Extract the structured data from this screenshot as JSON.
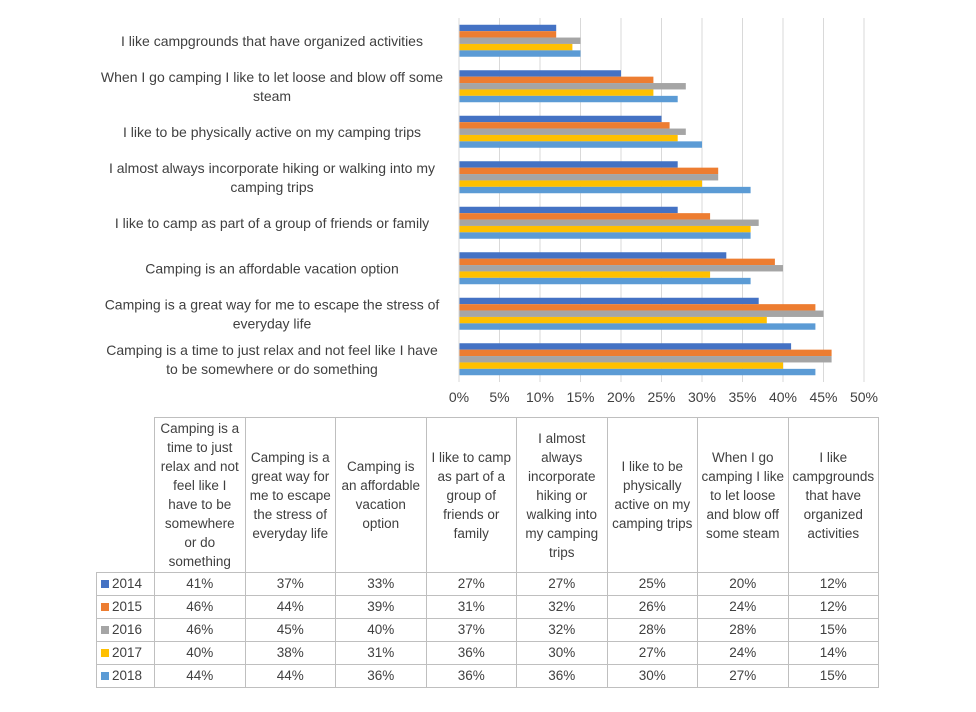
{
  "chart_data": {
    "type": "bar",
    "orientation": "horizontal",
    "categories": [
      "Camping is a time to just relax and not feel like I have to be somewhere or do something",
      "Camping is a great way for me to escape the stress of everyday life",
      "Camping is an affordable vacation option",
      "I like to camp as part of a group of friends or family",
      "I almost always incorporate hiking or walking into my camping trips",
      "I like to be physically active on my camping trips",
      "When I go camping I like to let loose and blow off some steam",
      "I like campgrounds that have organized activities"
    ],
    "category_label_lines": [
      [
        "Camping is a time to just relax and not feel like I have",
        "to be somewhere or do something"
      ],
      [
        "Camping is a great way for me to escape the stress of",
        "everyday life"
      ],
      [
        "Camping is an affordable vacation option"
      ],
      [
        "I like to camp as part of a group of friends or family"
      ],
      [
        "I almost always incorporate hiking or walking into my",
        "camping trips"
      ],
      [
        "I like to be physically active on my camping trips"
      ],
      [
        "When I go camping I like to let loose and blow off some",
        "steam"
      ],
      [
        "I like campgrounds that have organized activities"
      ]
    ],
    "table_header_lines": [
      [
        "Camping is a",
        "time to just",
        "relax and not",
        "feel like I",
        "have to be",
        "somewhere",
        "or do",
        "something"
      ],
      [
        "Camping is a",
        "great way for",
        "me to escape",
        "the stress of",
        "everyday life"
      ],
      [
        "Camping is",
        "an affordable",
        "vacation",
        "option"
      ],
      [
        "I like to camp",
        "as part of a",
        "group of",
        "friends or",
        "family"
      ],
      [
        "I almost",
        "always",
        "incorporate",
        "hiking or",
        "walking into",
        "my camping",
        "trips"
      ],
      [
        "I like to be",
        "physically",
        "active on my",
        "camping trips"
      ],
      [
        "When I go",
        "camping I like",
        "to let loose",
        "and blow off",
        "some steam"
      ],
      [
        "I like",
        "campgrounds",
        "that have",
        "organized",
        "activities"
      ]
    ],
    "series": [
      {
        "name": "2014",
        "color": "#4472c4",
        "values": [
          41,
          37,
          33,
          27,
          27,
          25,
          20,
          12
        ]
      },
      {
        "name": "2015",
        "color": "#ed7d31",
        "values": [
          46,
          44,
          39,
          31,
          32,
          26,
          24,
          12
        ]
      },
      {
        "name": "2016",
        "color": "#a5a5a5",
        "values": [
          46,
          45,
          40,
          37,
          32,
          28,
          28,
          15
        ]
      },
      {
        "name": "2017",
        "color": "#ffc000",
        "values": [
          40,
          38,
          31,
          36,
          30,
          27,
          24,
          14
        ]
      },
      {
        "name": "2018",
        "color": "#5b9bd5",
        "values": [
          44,
          44,
          36,
          36,
          36,
          30,
          27,
          15
        ]
      }
    ],
    "xlim": [
      0,
      50
    ],
    "x_ticks": [
      "0%",
      "5%",
      "10%",
      "15%",
      "20%",
      "25%",
      "30%",
      "35%",
      "40%",
      "45%",
      "50%"
    ],
    "value_suffix": "%",
    "grid": true,
    "legend": "data-table-below"
  }
}
